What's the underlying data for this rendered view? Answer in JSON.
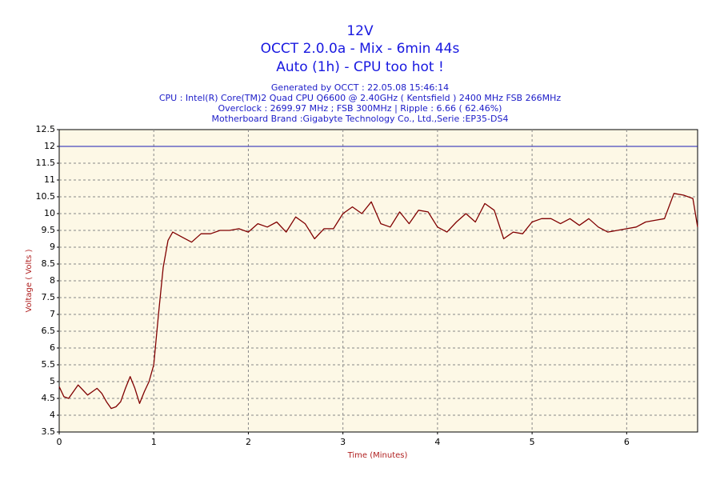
{
  "chart_data": {
    "type": "line",
    "title": "12V",
    "subtitle": "OCCT 2.0.0a - Mix - 6min 44s",
    "subtitle2": "Auto (1h) - CPU too hot !",
    "info": [
      "Generated by OCCT : 22.05.08 15:46:14",
      "CPU : Intel(R) Core(TM)2 Quad CPU Q6600 @ 2.40GHz ( Kentsfield ) 2400 MHz FSB 266MHz",
      "Overclock : 2699.97 MHz ; FSB 300MHz | Ripple : 6.66 ( 62.46%)",
      "Motherboard Brand :Gigabyte Technology Co., Ltd.,Serie :EP35-DS4"
    ],
    "x_label": "Time (Minutes)",
    "y_label": "Voltage ( Volts )",
    "x": [
      0,
      0.05,
      0.1,
      0.15,
      0.2,
      0.25,
      0.3,
      0.35,
      0.4,
      0.45,
      0.5,
      0.55,
      0.6,
      0.65,
      0.7,
      0.75,
      0.8,
      0.85,
      0.9,
      0.95,
      1.0,
      1.05,
      1.1,
      1.15,
      1.2,
      1.3,
      1.4,
      1.5,
      1.6,
      1.7,
      1.8,
      1.9,
      2.0,
      2.1,
      2.2,
      2.3,
      2.4,
      2.5,
      2.6,
      2.7,
      2.8,
      2.9,
      3.0,
      3.1,
      3.2,
      3.3,
      3.4,
      3.5,
      3.6,
      3.7,
      3.8,
      3.9,
      4.0,
      4.1,
      4.2,
      4.3,
      4.4,
      4.5,
      4.6,
      4.7,
      4.8,
      4.9,
      5.0,
      5.1,
      5.2,
      5.3,
      5.4,
      5.5,
      5.6,
      5.7,
      5.8,
      5.9,
      6.0,
      6.1,
      6.2,
      6.3,
      6.4,
      6.5,
      6.6,
      6.7,
      6.75
    ],
    "series": [
      {
        "name": "Voltage",
        "color": "#800000",
        "values": [
          4.85,
          4.55,
          4.5,
          4.7,
          4.9,
          4.75,
          4.6,
          4.7,
          4.8,
          4.65,
          4.4,
          4.2,
          4.25,
          4.4,
          4.8,
          5.15,
          4.8,
          4.35,
          4.7,
          5.0,
          5.5,
          7.0,
          8.4,
          9.2,
          9.45,
          9.3,
          9.15,
          9.4,
          9.4,
          9.5,
          9.5,
          9.55,
          9.45,
          9.7,
          9.6,
          9.75,
          9.45,
          9.9,
          9.7,
          9.25,
          9.55,
          9.55,
          10.0,
          10.2,
          10.0,
          10.35,
          9.7,
          9.6,
          10.05,
          9.7,
          10.1,
          10.05,
          9.6,
          9.45,
          9.75,
          10.0,
          9.75,
          10.3,
          10.1,
          9.25,
          9.45,
          9.4,
          9.75,
          9.85,
          9.85,
          9.7,
          9.85,
          9.65,
          9.85,
          9.6,
          9.45,
          9.5,
          9.55,
          9.6,
          9.75,
          9.8,
          9.85,
          10.6,
          10.55,
          10.45,
          9.6
        ]
      }
    ],
    "reference_value": 12,
    "reference_color": "#1c1cb4",
    "xlim": [
      0,
      6.75
    ],
    "ylim": [
      3.5,
      12.5
    ],
    "xticks": [
      0,
      1,
      2,
      3,
      4,
      5,
      6
    ],
    "yticks": [
      3.5,
      4,
      4.5,
      5,
      5.5,
      6,
      6.5,
      7,
      7.5,
      8,
      8.5,
      9,
      9.5,
      10,
      10.5,
      11,
      11.5,
      12,
      12.5
    ],
    "grid": true
  }
}
